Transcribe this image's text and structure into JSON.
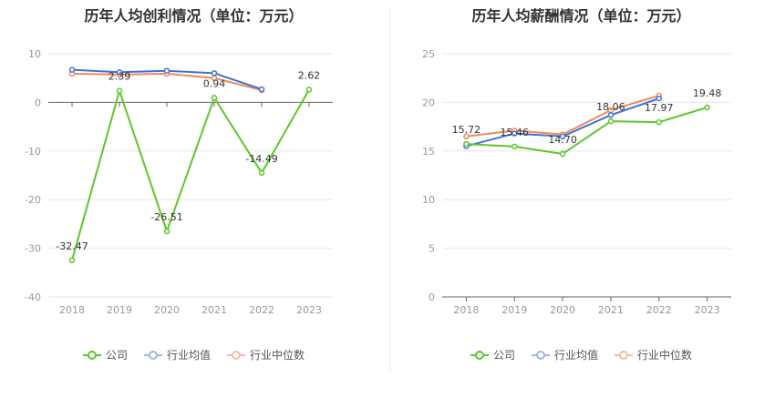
{
  "colors": {
    "company": "#5ec62b",
    "industry_avg": "#3f72d4",
    "industry_median": "#f0875d"
  },
  "legend": {
    "company": "公司",
    "industry_avg": "行业均值",
    "industry_median": "行业中位数"
  },
  "chart_data": [
    {
      "type": "line",
      "title": "历年人均创利情况（单位：万元）",
      "categories": [
        "2018",
        "2019",
        "2020",
        "2021",
        "2022",
        "2023"
      ],
      "ylim": [
        -40,
        10
      ],
      "yticks": [
        10,
        0,
        -10,
        -20,
        -30,
        -40
      ],
      "grid": true,
      "legend_position": "bottom",
      "series": [
        {
          "name": "公司",
          "values": [
            -32.47,
            2.39,
            -26.51,
            0.94,
            -14.49,
            2.62
          ],
          "labels": [
            "-32.47",
            "2.39",
            "-26.51",
            "0.94",
            "-14.49",
            "2.62"
          ]
        },
        {
          "name": "行业均值",
          "values": [
            6.7,
            6.2,
            6.5,
            6.0,
            2.7,
            null
          ]
        },
        {
          "name": "行业中位数",
          "values": [
            5.9,
            5.7,
            5.9,
            5.0,
            2.5,
            null
          ]
        }
      ]
    },
    {
      "type": "line",
      "title": "历年人均薪酬情况（单位：万元）",
      "categories": [
        "2018",
        "2019",
        "2020",
        "2021",
        "2022",
        "2023"
      ],
      "ylim": [
        0,
        25
      ],
      "yticks": [
        25,
        20,
        15,
        10,
        5,
        0
      ],
      "grid": true,
      "legend_position": "bottom",
      "series": [
        {
          "name": "公司",
          "values": [
            15.72,
            15.46,
            14.7,
            18.06,
            17.97,
            19.48
          ],
          "labels": [
            "15.72",
            "15.46",
            "14.70",
            "18.06",
            "17.97",
            "19.48"
          ]
        },
        {
          "name": "行业均值",
          "values": [
            15.5,
            16.8,
            16.5,
            18.7,
            20.4,
            null
          ]
        },
        {
          "name": "行业中位数",
          "values": [
            16.5,
            17.1,
            16.7,
            19.2,
            20.7,
            null
          ]
        }
      ]
    }
  ]
}
